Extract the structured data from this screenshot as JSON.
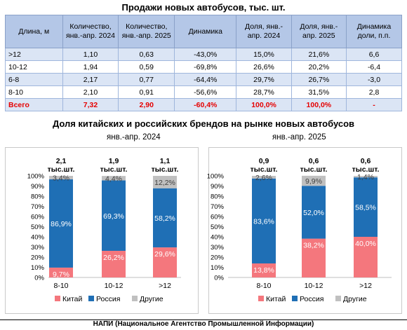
{
  "title": "Продажи новых автобусов, тыс. шт.",
  "table": {
    "headers": [
      "Длина, м",
      "Количество, янв.-апр. 2024",
      "Количество, янв.-апр. 2025",
      "Динамика",
      "Доля, янв.-апр. 2024",
      "Доля, янв.-апр. 2025",
      "Динамика доли, п.п."
    ],
    "rows": [
      [
        ">12",
        "1,10",
        "0,63",
        "-43,0%",
        "15,0%",
        "21,6%",
        "6,6"
      ],
      [
        "10-12",
        "1,94",
        "0,59",
        "-69,8%",
        "26,6%",
        "20,2%",
        "-6,4"
      ],
      [
        "6-8",
        "2,17",
        "0,77",
        "-64,4%",
        "29,7%",
        "26,7%",
        "-3,0"
      ],
      [
        "8-10",
        "2,10",
        "0,91",
        "-56,6%",
        "28,7%",
        "31,5%",
        "2,8"
      ],
      [
        "Всего",
        "7,32",
        "2,90",
        "-60,4%",
        "100,0%",
        "100,0%",
        "-"
      ]
    ]
  },
  "subtitle": "Доля китайских и российских брендов на рынке новых автобусов",
  "footer": "НАПИ (Национальное Агентство Промышленной Информации)",
  "colors": {
    "china": "#f4777d",
    "russia": "#1f6fb5",
    "other": "#c0c0c0",
    "header_bg": "#b4c7e7",
    "total": "#e60000"
  },
  "chart_data": [
    {
      "type": "bar",
      "stacked": true,
      "title": "янв.-апр. 2024",
      "categories": [
        "8-10",
        "10-12",
        ">12"
      ],
      "totals": [
        "2,1 тыс.шт.",
        "1,9 тыс.шт.",
        "1,1 тыс.шт."
      ],
      "series": [
        {
          "name": "Китай",
          "values": [
            9.7,
            26.2,
            29.6
          ],
          "labels": [
            "9,7%",
            "26,2%",
            "29,6%"
          ]
        },
        {
          "name": "Россия",
          "values": [
            86.9,
            69.3,
            58.2
          ],
          "labels": [
            "86,9%",
            "69,3%",
            "58,2%"
          ]
        },
        {
          "name": "Другие",
          "values": [
            3.4,
            4.4,
            12.2
          ],
          "labels": [
            "3,4%",
            "4,4%",
            "12,2%"
          ]
        }
      ],
      "yticks": [
        "0%",
        "10%",
        "20%",
        "30%",
        "40%",
        "50%",
        "60%",
        "70%",
        "80%",
        "90%",
        "100%"
      ],
      "ylim": [
        0,
        100
      ],
      "legend": "bottom"
    },
    {
      "type": "bar",
      "stacked": true,
      "title": "янв.-апр. 2025",
      "categories": [
        "8-10",
        "10-12",
        ">12"
      ],
      "totals": [
        "0,9 тыс.шт.",
        "0,6 тыс.шт.",
        "0,6 тыс.шт."
      ],
      "series": [
        {
          "name": "Китай",
          "values": [
            13.8,
            38.2,
            40.0
          ],
          "labels": [
            "13,8%",
            "38,2%",
            "40,0%"
          ]
        },
        {
          "name": "Россия",
          "values": [
            83.6,
            52.0,
            58.5
          ],
          "labels": [
            "83,6%",
            "52,0%",
            "58,5%"
          ]
        },
        {
          "name": "Другие",
          "values": [
            2.6,
            9.9,
            1.4
          ],
          "labels": [
            "2,6%",
            "9,9%",
            "1,4%"
          ]
        }
      ],
      "yticks": [
        "0%",
        "10%",
        "20%",
        "30%",
        "40%",
        "50%",
        "60%",
        "70%",
        "80%",
        "90%",
        "100%"
      ],
      "ylim": [
        0,
        100
      ],
      "legend": "bottom"
    }
  ]
}
